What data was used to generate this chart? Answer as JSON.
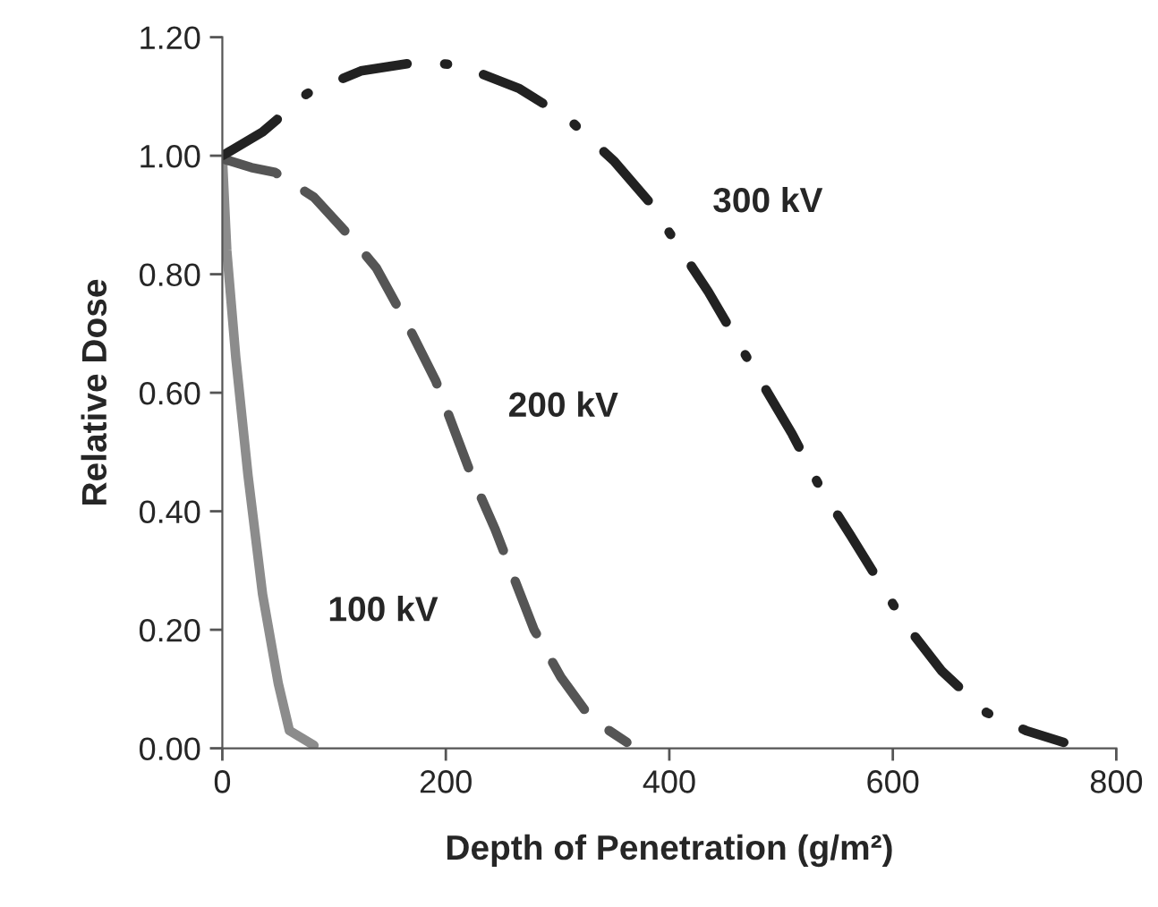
{
  "chart_data": {
    "type": "line",
    "xlabel": "Depth of Penetration (g/m²)",
    "ylabel": "Relative Dose",
    "series": [
      {
        "name": "100 kV",
        "color": "#8c8c8c",
        "line_style": "solid",
        "x": [
          0,
          4,
          12,
          23,
          36,
          50,
          60,
          82
        ],
        "values": [
          1.0,
          0.84,
          0.66,
          0.46,
          0.26,
          0.11,
          0.03,
          0.005
        ]
      },
      {
        "name": "200 kV",
        "color": "#555555",
        "line_style": "dashed",
        "x": [
          0,
          26,
          47,
          82,
          116,
          138,
          167,
          191,
          223,
          244,
          279,
          303,
          330,
          362
        ],
        "values": [
          0.995,
          0.98,
          0.972,
          0.93,
          0.86,
          0.81,
          0.71,
          0.62,
          0.46,
          0.37,
          0.2,
          0.12,
          0.05,
          0.01
        ]
      },
      {
        "name": "300 kV",
        "color": "#222222",
        "line_style": "dashdot",
        "x": [
          0,
          36,
          76,
          124,
          175,
          212,
          266,
          311,
          351,
          383,
          407,
          435,
          463,
          510,
          535,
          562,
          611,
          644,
          684,
          719,
          753
        ],
        "values": [
          1.0,
          1.04,
          1.105,
          1.143,
          1.158,
          1.153,
          1.113,
          1.06,
          0.99,
          0.92,
          0.85,
          0.77,
          0.68,
          0.53,
          0.44,
          0.36,
          0.21,
          0.13,
          0.06,
          0.03,
          0.01
        ]
      }
    ],
    "xlim": [
      0,
      800
    ],
    "xticks": [
      0,
      200,
      400,
      600,
      800
    ],
    "ylim": [
      0,
      1.2
    ],
    "yticks": [
      {
        "value": 0,
        "label": "0.00"
      },
      {
        "value": 0.2,
        "label": "0.20"
      },
      {
        "value": 0.4,
        "label": "0.40"
      },
      {
        "value": 0.6,
        "label": "0.60"
      },
      {
        "value": 0.8,
        "label": "0.80"
      },
      {
        "value": 1.0,
        "label": "1.00"
      },
      {
        "value": 1.2,
        "label": "1.20"
      }
    ],
    "grid": false
  }
}
